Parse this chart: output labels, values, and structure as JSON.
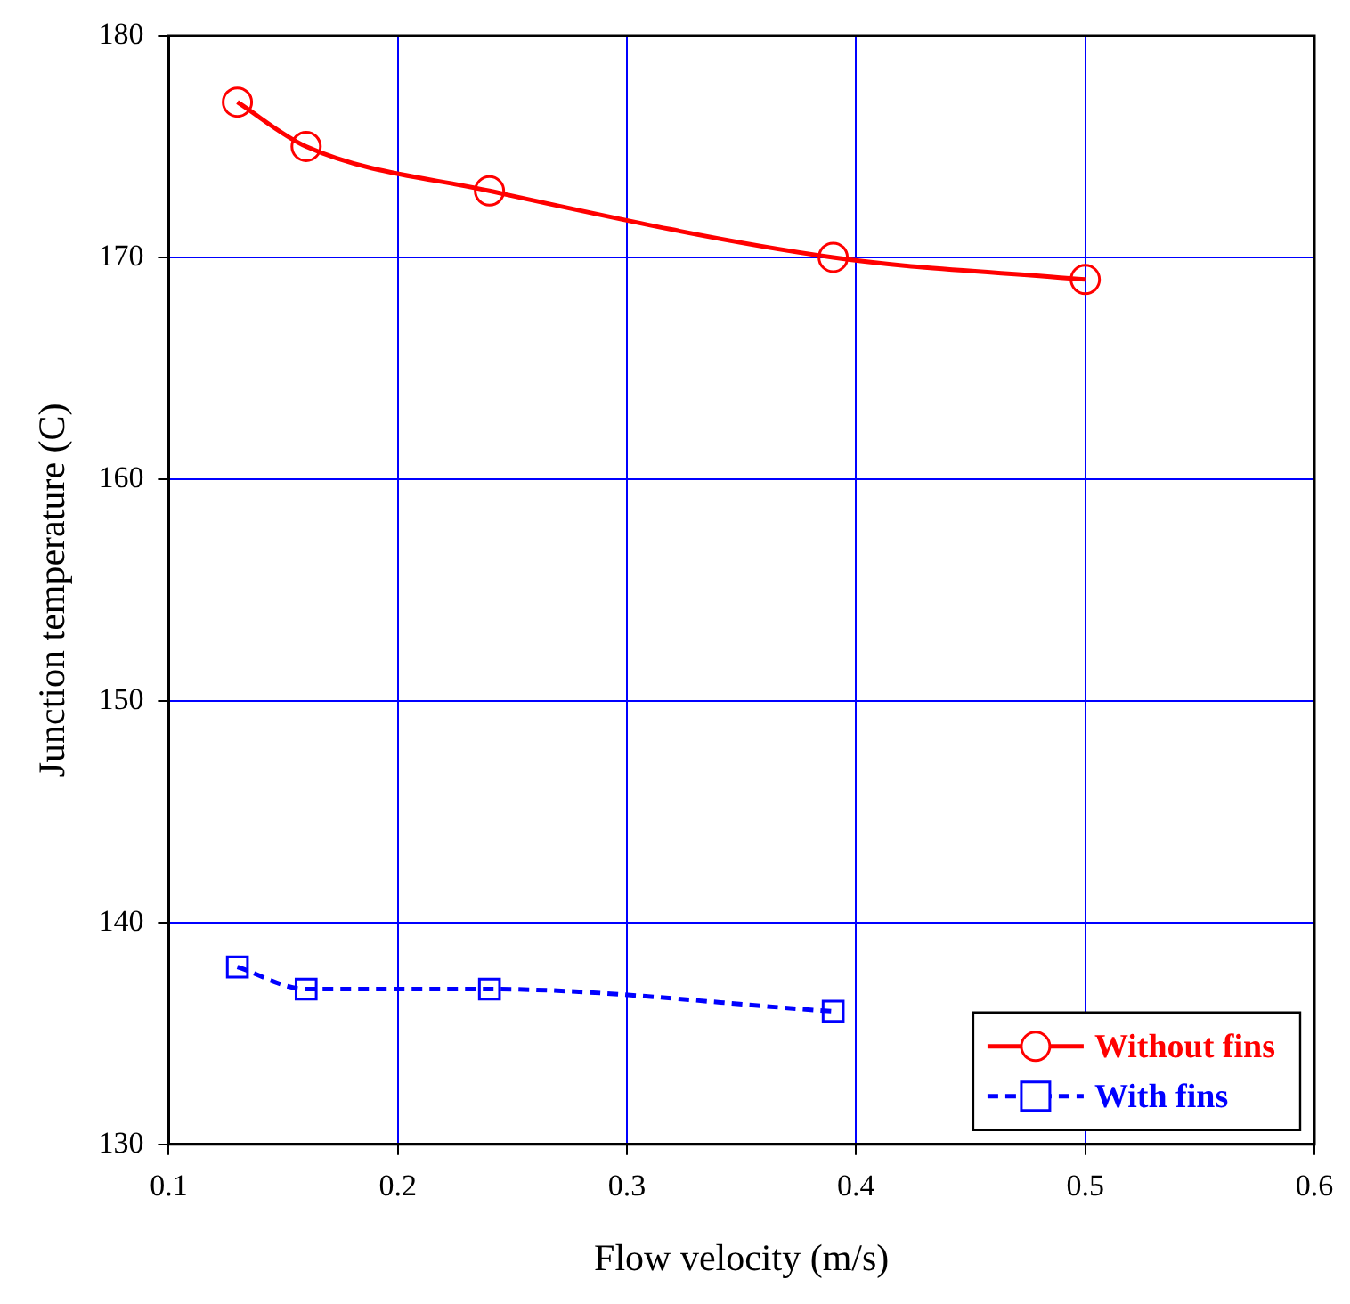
{
  "chart_data": {
    "type": "line",
    "xlabel": "Flow velocity (m/s)",
    "ylabel": "Junction temperature (C)",
    "xlim": [
      0.1,
      0.6
    ],
    "xticks": [
      0.1,
      0.2,
      0.3,
      0.4,
      0.5,
      0.6
    ],
    "ylim": [
      130,
      180
    ],
    "yticks": [
      130,
      140,
      150,
      160,
      170,
      180
    ],
    "grid": true,
    "legend": "bottom right",
    "series": [
      {
        "name": "Without fins",
        "color": "#ff0000",
        "marker": "circle",
        "line_style": "solid",
        "x": [
          0.13,
          0.16,
          0.24,
          0.39,
          0.5
        ],
        "values": [
          177,
          175,
          173,
          170,
          169
        ]
      },
      {
        "name": "With fins",
        "color": "#0000ff",
        "marker": "square",
        "line_style": "dashed",
        "x": [
          0.13,
          0.16,
          0.24,
          0.39
        ],
        "values": [
          138,
          137,
          137,
          136
        ]
      }
    ]
  }
}
